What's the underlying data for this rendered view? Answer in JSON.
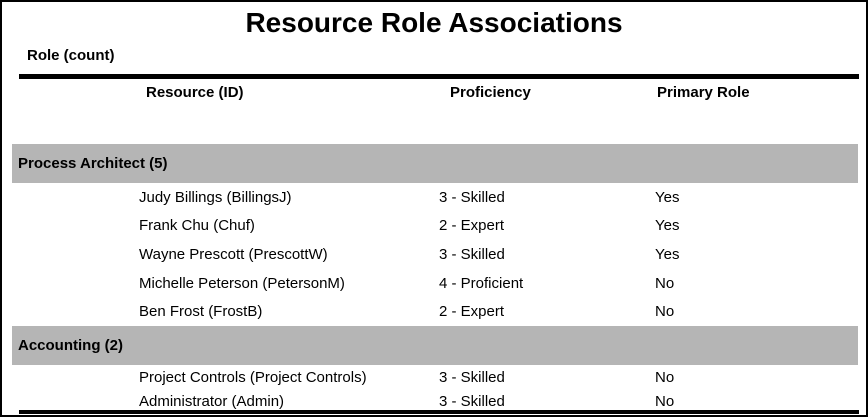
{
  "report": {
    "title": "Resource Role Associations",
    "section_label": "Role (count)",
    "columns": {
      "resource": "Resource (ID)",
      "proficiency": "Proficiency",
      "primary_role": "Primary Role"
    },
    "groups": [
      {
        "label": "Process Architect (5)",
        "rows": [
          {
            "resource": "Judy Billings (BillingsJ)",
            "proficiency": "3 - Skilled",
            "primary_role": "Yes"
          },
          {
            "resource": "Frank Chu (Chuf)",
            "proficiency": "2 - Expert",
            "primary_role": "Yes"
          },
          {
            "resource": "Wayne Prescott (PrescottW)",
            "proficiency": "3 - Skilled",
            "primary_role": "Yes"
          },
          {
            "resource": "Michelle Peterson (PetersonM)",
            "proficiency": "4 - Proficient",
            "primary_role": "No"
          },
          {
            "resource": "Ben Frost (FrostB)",
            "proficiency": "2 - Expert",
            "primary_role": "No"
          }
        ]
      },
      {
        "label": "Accounting (2)",
        "rows": [
          {
            "resource": "Project Controls (Project Controls)",
            "proficiency": "3 - Skilled",
            "primary_role": "No"
          },
          {
            "resource": "Administrator (Admin)",
            "proficiency": "3 - Skilled",
            "primary_role": "No"
          }
        ]
      }
    ],
    "colors": {
      "band_background": "#b5b5b5",
      "rule": "#000000",
      "text": "#000000",
      "page_background": "#ffffff"
    }
  }
}
